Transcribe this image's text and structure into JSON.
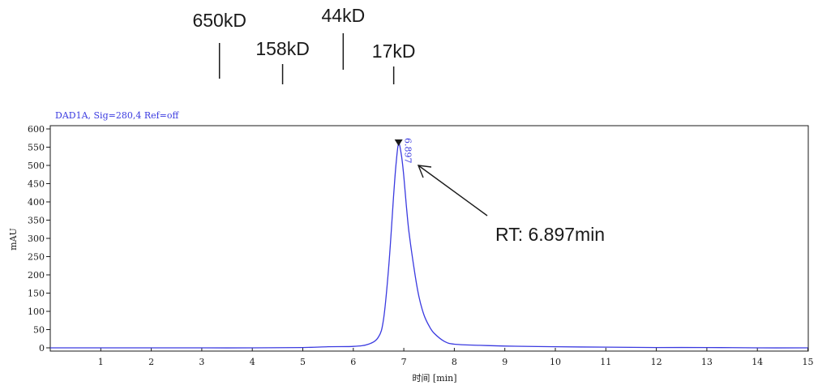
{
  "chart_data": {
    "type": "line",
    "signal_label": "DAD1A, Sig=280,4   Ref=off",
    "ylabel": "mAU",
    "xlabel": "时间 [min]",
    "xlim": [
      0,
      15
    ],
    "ylim": [
      -5,
      600
    ],
    "x_ticks": [
      1,
      2,
      3,
      4,
      5,
      6,
      7,
      8,
      9,
      10,
      11,
      12,
      13,
      14,
      15
    ],
    "y_ticks": [
      0,
      50,
      100,
      150,
      200,
      250,
      300,
      350,
      400,
      450,
      500,
      550,
      600
    ],
    "series": [
      {
        "color": "#3a3ae0",
        "x": [
          0,
          1,
          2,
          3,
          4,
          5,
          5.5,
          6,
          6.3,
          6.5,
          6.6,
          6.7,
          6.8,
          6.85,
          6.897,
          6.95,
          7.0,
          7.05,
          7.1,
          7.2,
          7.3,
          7.4,
          7.5,
          7.6,
          7.8,
          8.0,
          8.5,
          9,
          10,
          11,
          12,
          13,
          14,
          15
        ],
        "y": [
          0,
          0,
          0,
          0,
          0,
          1,
          3,
          4,
          10,
          30,
          80,
          220,
          420,
          510,
          560,
          530,
          470,
          390,
          320,
          220,
          140,
          90,
          60,
          40,
          18,
          10,
          7,
          5,
          3,
          2,
          1,
          1,
          0,
          0
        ]
      }
    ],
    "peak_marker": {
      "x": 6.897,
      "y": 560,
      "label": "6.897"
    },
    "markers": [
      {
        "label": "650kD",
        "x": 3.35
      },
      {
        "label": "158kD",
        "x": 4.6
      },
      {
        "label": "44kD",
        "x": 5.8
      },
      {
        "label": "17kD",
        "x": 6.8
      }
    ],
    "annotation": {
      "text": "RT: 6.897min"
    }
  },
  "style": {
    "line_color": "#3a3ae0",
    "axis_color": "#1a1a1a"
  }
}
